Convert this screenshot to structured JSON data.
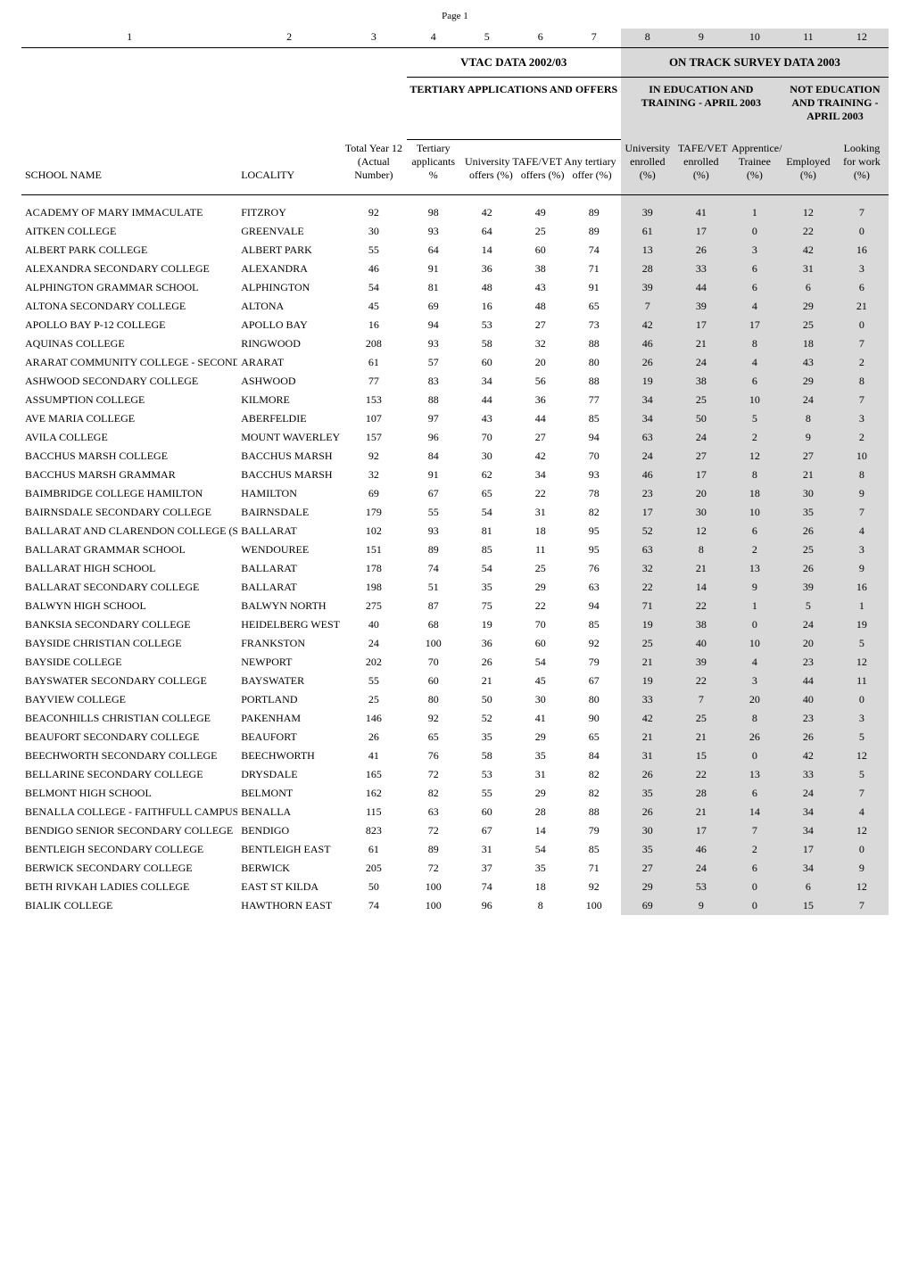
{
  "page_number": "Page 1",
  "column_indices": [
    "1",
    "2",
    "3",
    "4",
    "5",
    "6",
    "7",
    "8",
    "9",
    "10",
    "11",
    "12"
  ],
  "group_headers": {
    "vtac": "VTAC DATA 2002/03",
    "ots": "ON TRACK SURVEY DATA 2003"
  },
  "sub_headers": {
    "tert_apps": "TERTIARY APPLICATIONS AND OFFERS",
    "edu_train": "IN EDUCATION AND TRAINING - APRIL 2003",
    "not_edu": "NOT EDUCATION AND TRAINING - APRIL 2003"
  },
  "col_headers": {
    "school": "SCHOOL NAME",
    "locality": "LOCALITY",
    "total_y12": "Total Year 12 (Actual Number)",
    "tertiary_app": "Tertiary applicants %",
    "uni_offers": "University TAFE/VET Any tertiary",
    "offers_pct": "offers (%)",
    "offers_pct2": "offers (%)",
    "offer_pct": "offer (%)",
    "uni_enr": "University enrolled (%)",
    "tafe_enr": "TAFE/VET enrolled (%)",
    "appr": "Apprentice/ Trainee (%)",
    "employed": "Employed (%)",
    "looking": "Looking for work (%)"
  },
  "rows": [
    {
      "school": "ACADEMY OF MARY IMMACULATE",
      "loc": "FITZROY",
      "v": [
        92,
        98,
        42,
        49,
        89,
        39,
        41,
        1,
        12,
        7
      ]
    },
    {
      "school": "AITKEN COLLEGE",
      "loc": "GREENVALE",
      "v": [
        30,
        93,
        64,
        25,
        89,
        61,
        17,
        0,
        22,
        0
      ]
    },
    {
      "school": "ALBERT PARK COLLEGE",
      "loc": "ALBERT PARK",
      "v": [
        55,
        64,
        14,
        60,
        74,
        13,
        26,
        3,
        42,
        16
      ]
    },
    {
      "school": "ALEXANDRA SECONDARY COLLEGE",
      "loc": "ALEXANDRA",
      "v": [
        46,
        91,
        36,
        38,
        71,
        28,
        33,
        6,
        31,
        3
      ]
    },
    {
      "school": "ALPHINGTON GRAMMAR SCHOOL",
      "loc": "ALPHINGTON",
      "v": [
        54,
        81,
        48,
        43,
        91,
        39,
        44,
        6,
        6,
        6
      ]
    },
    {
      "school": "ALTONA SECONDARY COLLEGE",
      "loc": "ALTONA",
      "v": [
        45,
        69,
        16,
        48,
        65,
        7,
        39,
        4,
        29,
        21
      ]
    },
    {
      "school": "APOLLO BAY P-12 COLLEGE",
      "loc": "APOLLO BAY",
      "v": [
        16,
        94,
        53,
        27,
        73,
        42,
        17,
        17,
        25,
        0
      ]
    },
    {
      "school": "AQUINAS COLLEGE",
      "loc": "RINGWOOD",
      "v": [
        208,
        93,
        58,
        32,
        88,
        46,
        21,
        8,
        18,
        7
      ]
    },
    {
      "school": "ARARAT COMMUNITY COLLEGE - SECONDARY",
      "loc": "ARARAT",
      "v": [
        61,
        57,
        60,
        20,
        80,
        26,
        24,
        4,
        43,
        2
      ]
    },
    {
      "school": "ASHWOOD SECONDARY COLLEGE",
      "loc": "ASHWOOD",
      "v": [
        77,
        83,
        34,
        56,
        88,
        19,
        38,
        6,
        29,
        8
      ]
    },
    {
      "school": "ASSUMPTION COLLEGE",
      "loc": "KILMORE",
      "v": [
        153,
        88,
        44,
        36,
        77,
        34,
        25,
        10,
        24,
        7
      ]
    },
    {
      "school": "AVE MARIA COLLEGE",
      "loc": "ABERFELDIE",
      "v": [
        107,
        97,
        43,
        44,
        85,
        34,
        50,
        5,
        8,
        3
      ]
    },
    {
      "school": "AVILA COLLEGE",
      "loc": "MOUNT WAVERLEY",
      "v": [
        157,
        96,
        70,
        27,
        94,
        63,
        24,
        2,
        9,
        2
      ]
    },
    {
      "school": "BACCHUS MARSH COLLEGE",
      "loc": "BACCHUS MARSH",
      "v": [
        92,
        84,
        30,
        42,
        70,
        24,
        27,
        12,
        27,
        10
      ]
    },
    {
      "school": "BACCHUS MARSH GRAMMAR",
      "loc": "BACCHUS MARSH",
      "v": [
        32,
        91,
        62,
        34,
        93,
        46,
        17,
        8,
        21,
        8
      ]
    },
    {
      "school": "BAIMBRIDGE COLLEGE HAMILTON",
      "loc": "HAMILTON",
      "v": [
        69,
        67,
        65,
        22,
        78,
        23,
        20,
        18,
        30,
        9
      ]
    },
    {
      "school": "BAIRNSDALE SECONDARY COLLEGE",
      "loc": "BAIRNSDALE",
      "v": [
        179,
        55,
        54,
        31,
        82,
        17,
        30,
        10,
        35,
        7
      ]
    },
    {
      "school": "BALLARAT AND CLARENDON COLLEGE (SENIOR)",
      "loc": "BALLARAT",
      "v": [
        102,
        93,
        81,
        18,
        95,
        52,
        12,
        6,
        26,
        4
      ]
    },
    {
      "school": "BALLARAT GRAMMAR SCHOOL",
      "loc": "WENDOUREE",
      "v": [
        151,
        89,
        85,
        11,
        95,
        63,
        8,
        2,
        25,
        3
      ]
    },
    {
      "school": "BALLARAT HIGH SCHOOL",
      "loc": "BALLARAT",
      "v": [
        178,
        74,
        54,
        25,
        76,
        32,
        21,
        13,
        26,
        9
      ]
    },
    {
      "school": "BALLARAT SECONDARY COLLEGE",
      "loc": "BALLARAT",
      "v": [
        198,
        51,
        35,
        29,
        63,
        22,
        14,
        9,
        39,
        16
      ]
    },
    {
      "school": "BALWYN HIGH SCHOOL",
      "loc": "BALWYN NORTH",
      "v": [
        275,
        87,
        75,
        22,
        94,
        71,
        22,
        1,
        5,
        1
      ]
    },
    {
      "school": "BANKSIA SECONDARY COLLEGE",
      "loc": "HEIDELBERG WEST",
      "v": [
        40,
        68,
        19,
        70,
        85,
        19,
        38,
        0,
        24,
        19
      ]
    },
    {
      "school": "BAYSIDE CHRISTIAN COLLEGE",
      "loc": "FRANKSTON",
      "v": [
        24,
        100,
        36,
        60,
        92,
        25,
        40,
        10,
        20,
        5
      ]
    },
    {
      "school": "BAYSIDE COLLEGE",
      "loc": "NEWPORT",
      "v": [
        202,
        70,
        26,
        54,
        79,
        21,
        39,
        4,
        23,
        12
      ]
    },
    {
      "school": "BAYSWATER SECONDARY COLLEGE",
      "loc": "BAYSWATER",
      "v": [
        55,
        60,
        21,
        45,
        67,
        19,
        22,
        3,
        44,
        11
      ]
    },
    {
      "school": "BAYVIEW COLLEGE",
      "loc": "PORTLAND",
      "v": [
        25,
        80,
        50,
        30,
        80,
        33,
        7,
        20,
        40,
        0
      ]
    },
    {
      "school": "BEACONHILLS CHRISTIAN COLLEGE",
      "loc": "PAKENHAM",
      "v": [
        146,
        92,
        52,
        41,
        90,
        42,
        25,
        8,
        23,
        3
      ]
    },
    {
      "school": "BEAUFORT SECONDARY COLLEGE",
      "loc": "BEAUFORT",
      "v": [
        26,
        65,
        35,
        29,
        65,
        21,
        21,
        26,
        26,
        5
      ]
    },
    {
      "school": "BEECHWORTH SECONDARY COLLEGE",
      "loc": "BEECHWORTH",
      "v": [
        41,
        76,
        58,
        35,
        84,
        31,
        15,
        0,
        42,
        12
      ]
    },
    {
      "school": "BELLARINE SECONDARY COLLEGE",
      "loc": "DRYSDALE",
      "v": [
        165,
        72,
        53,
        31,
        82,
        26,
        22,
        13,
        33,
        5
      ]
    },
    {
      "school": "BELMONT HIGH SCHOOL",
      "loc": "BELMONT",
      "v": [
        162,
        82,
        55,
        29,
        82,
        35,
        28,
        6,
        24,
        7
      ]
    },
    {
      "school": "BENALLA COLLEGE - FAITHFULL CAMPUS",
      "loc": "BENALLA",
      "v": [
        115,
        63,
        60,
        28,
        88,
        26,
        21,
        14,
        34,
        4
      ]
    },
    {
      "school": "BENDIGO SENIOR SECONDARY COLLEGE",
      "loc": "BENDIGO",
      "v": [
        823,
        72,
        67,
        14,
        79,
        30,
        17,
        7,
        34,
        12
      ]
    },
    {
      "school": "BENTLEIGH SECONDARY COLLEGE",
      "loc": "BENTLEIGH EAST",
      "v": [
        61,
        89,
        31,
        54,
        85,
        35,
        46,
        2,
        17,
        0
      ]
    },
    {
      "school": "BERWICK SECONDARY COLLEGE",
      "loc": "BERWICK",
      "v": [
        205,
        72,
        37,
        35,
        71,
        27,
        24,
        6,
        34,
        9
      ]
    },
    {
      "school": "BETH RIVKAH LADIES COLLEGE",
      "loc": "EAST ST KILDA",
      "v": [
        50,
        100,
        74,
        18,
        92,
        29,
        53,
        0,
        6,
        12
      ]
    },
    {
      "school": "BIALIK COLLEGE",
      "loc": "HAWTHORN EAST",
      "v": [
        74,
        100,
        96,
        8,
        100,
        69,
        9,
        0,
        15,
        7
      ]
    }
  ],
  "colors": {
    "shade": "#d9d9d9"
  }
}
